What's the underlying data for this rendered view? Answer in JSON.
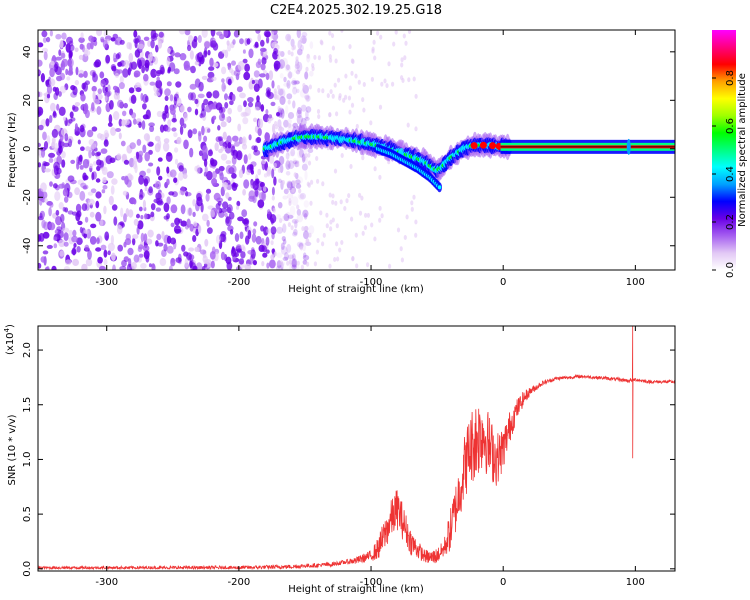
{
  "figure_title": "C2E4.2025.302.19.25.G18",
  "chart_data": [
    {
      "type": "heatmap",
      "title": "C2E4.2025.302.19.25.G18",
      "xlabel": "Height of straight line (km)",
      "ylabel": "Frequency (Hz)",
      "xlim": [
        -352,
        130
      ],
      "ylim": [
        -50,
        49
      ],
      "xticks": [
        -300,
        -200,
        -100,
        0,
        100
      ],
      "xtick_labels": [
        "-300",
        "-200",
        "-100",
        "0",
        "100"
      ],
      "yticks": [
        -40,
        -20,
        0,
        20,
        40
      ],
      "ytick_labels": [
        "-40",
        "-20",
        "0",
        "20",
        "40"
      ],
      "colorbar": {
        "label": "Normalized spectral amplitude",
        "range": [
          0,
          1
        ],
        "ticks": [
          0.0,
          0.2,
          0.4,
          0.6,
          0.8
        ],
        "tick_labels": [
          "0.0",
          "0.2",
          "0.4",
          "0.6",
          "0.8"
        ],
        "colors": [
          "#ffffff",
          "#e2c8f5",
          "#a55ef0",
          "#6a00e6",
          "#0000ff",
          "#00a0ff",
          "#00ffff",
          "#00ff80",
          "#00ff00",
          "#a0ff00",
          "#ffff00",
          "#ffa000",
          "#ff0000",
          "#ff0080",
          "#ff00ff"
        ]
      },
      "ridge": {
        "x": [
          -180,
          -170,
          -160,
          -150,
          -140,
          -130,
          -120,
          -110,
          -100,
          -90,
          -80,
          -70,
          -60,
          -50,
          -45,
          -40,
          -35,
          -30,
          -25,
          -20,
          -15,
          -10,
          -5,
          0,
          5,
          130
        ],
        "y": [
          0,
          2,
          4,
          5,
          5,
          4.5,
          4,
          3,
          2,
          0.5,
          -1,
          -3,
          -5,
          -9,
          -7,
          -4,
          -2,
          0,
          1,
          1.5,
          1.5,
          1.5,
          1,
          1,
          0.5,
          0.5
        ]
      },
      "ridge_branch": {
        "x": [
          -95,
          -85,
          -75,
          -65,
          -55,
          -48
        ],
        "y": [
          0,
          -2,
          -5,
          -8,
          -12,
          -16
        ]
      },
      "noise_region": [
        -352,
        -170
      ]
    },
    {
      "type": "line",
      "xlabel": "Height of straight line (km)",
      "ylabel": "SNR (10 * v/v)",
      "y_scale_label": "(x10",
      "y_scale_exponent": "4",
      "color": "#ee3333",
      "xlim": [
        -352,
        130
      ],
      "ylim": [
        -0.02,
        2.22
      ],
      "xticks": [
        -300,
        -200,
        -100,
        0,
        100
      ],
      "xtick_labels": [
        "-300",
        "-200",
        "-100",
        "0",
        "100"
      ],
      "yticks": [
        0,
        0.5,
        1.0,
        1.5,
        2.0
      ],
      "ytick_labels": [
        "0.0",
        "0.5",
        "1.0",
        "1.5",
        "2.0"
      ],
      "envelope": {
        "x": [
          -352,
          -200,
          -160,
          -130,
          -110,
          -100,
          -95,
          -90,
          -85,
          -80,
          -75,
          -70,
          -65,
          -60,
          -55,
          -50,
          -45,
          -40,
          -35,
          -30,
          -25,
          -20,
          -15,
          -10,
          -5,
          0,
          5,
          10,
          15,
          20,
          30,
          40,
          60,
          80,
          95,
          100,
          105,
          110,
          130
        ],
        "y": [
          0.01,
          0.01,
          0.02,
          0.04,
          0.08,
          0.12,
          0.18,
          0.3,
          0.45,
          0.55,
          0.4,
          0.25,
          0.18,
          0.12,
          0.1,
          0.12,
          0.18,
          0.35,
          0.6,
          0.9,
          1.1,
          1.2,
          1.25,
          1.1,
          1.0,
          1.1,
          1.3,
          1.45,
          1.55,
          1.62,
          1.7,
          1.74,
          1.76,
          1.74,
          1.72,
          1.73,
          1.72,
          1.71,
          1.71
        ]
      },
      "noise_amplitude": {
        "x": [
          -352,
          -120,
          -100,
          -90,
          -80,
          -70,
          -60,
          -45,
          -40,
          -30,
          -20,
          -10,
          0,
          10,
          20,
          30,
          40,
          130
        ],
        "y": [
          0.012,
          0.02,
          0.05,
          0.15,
          0.2,
          0.12,
          0.06,
          0.08,
          0.2,
          0.3,
          0.38,
          0.3,
          0.2,
          0.1,
          0.04,
          0.02,
          0.015,
          0.015
        ]
      },
      "spike": {
        "x": 98,
        "max": 2.22,
        "min": 1.01
      }
    }
  ]
}
